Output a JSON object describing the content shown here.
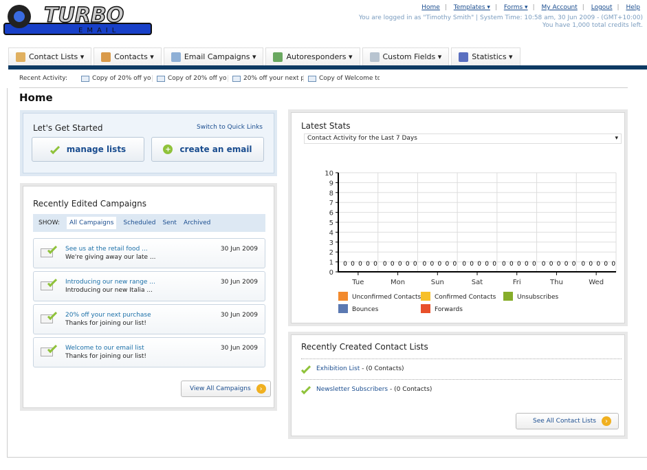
{
  "logo": {
    "text": "TURBO",
    "sub": "EMAIL"
  },
  "top_links": [
    "Home",
    "Templates ▾",
    "Forms ▾",
    "My Account",
    "Logout",
    "Help"
  ],
  "info": {
    "line1": "You are logged in as \"Timothy Smith\" | System Time: 10:58 am, 30 Jun 2009 - (GMT+10:00)",
    "line2": "You have 1,000 total credits left."
  },
  "tabs": [
    {
      "label": "Contact Lists ▾",
      "icon": "contact-lists-icon",
      "color": "#e0b060"
    },
    {
      "label": "Contacts ▾",
      "icon": "contacts-icon",
      "color": "#d99a4a"
    },
    {
      "label": "Email Campaigns ▾",
      "icon": "envelope-icon",
      "color": "#8fb0d6"
    },
    {
      "label": "Autoresponders ▾",
      "icon": "autoresponder-icon",
      "color": "#6aa860"
    },
    {
      "label": "Custom Fields ▾",
      "icon": "custom-fields-icon",
      "color": "#b8c4d0"
    },
    {
      "label": "Statistics ▾",
      "icon": "statistics-icon",
      "color": "#5a6fc0"
    }
  ],
  "recent": {
    "label": "Recent Activity:",
    "items": [
      "Copy of 20% off yo",
      "Copy of 20% off yo",
      "20% off your next p",
      "Copy of Welcome to"
    ]
  },
  "page_title": "Home",
  "get_started": {
    "title": "Let's Get Started",
    "switch": "Switch to Quick Links",
    "manage": "manage lists",
    "create": "create an email"
  },
  "campaigns": {
    "title": "Recently Edited Campaigns",
    "show": "SHOW:",
    "filters": [
      "All Campaigns",
      "Scheduled",
      "Sent",
      "Archived"
    ],
    "items": [
      {
        "title": "See us at the retail food ...",
        "desc": "We're giving away our late ...",
        "date": "30 Jun 2009"
      },
      {
        "title": "Introducing our new range ...",
        "desc": "Introducing our new Italia ...",
        "date": "30 Jun 2009"
      },
      {
        "title": "20% off your next purchase",
        "desc": "Thanks for joining our list!",
        "date": "30 Jun 2009"
      },
      {
        "title": "Welcome to our email list",
        "desc": "Thanks for joining our list!",
        "date": "30 Jun 2009"
      }
    ],
    "view_all": "View All Campaigns"
  },
  "stats": {
    "title": "Latest Stats",
    "select": "Contact Activity for the Last 7 Days"
  },
  "chart_data": {
    "type": "bar",
    "categories": [
      "Tue",
      "Mon",
      "Sun",
      "Sat",
      "Fri",
      "Thu",
      "Wed"
    ],
    "ylim": [
      0,
      10
    ],
    "yticks": [
      0,
      1,
      2,
      3,
      4,
      5,
      6,
      7,
      8,
      9,
      10
    ],
    "grid": true,
    "legend": "bottom",
    "series": [
      {
        "name": "Unconfirmed Contacts",
        "color": "#f28a2e",
        "values": [
          0,
          0,
          0,
          0,
          0,
          0,
          0
        ]
      },
      {
        "name": "Confirmed Contacts",
        "color": "#f7c02a",
        "values": [
          0,
          0,
          0,
          0,
          0,
          0,
          0
        ]
      },
      {
        "name": "Unsubscribes",
        "color": "#86ad2a",
        "values": [
          0,
          0,
          0,
          0,
          0,
          0,
          0
        ]
      },
      {
        "name": "Bounces",
        "color": "#5b79b2",
        "values": [
          0,
          0,
          0,
          0,
          0,
          0,
          0
        ]
      },
      {
        "name": "Forwards",
        "color": "#e8502a",
        "values": [
          0,
          0,
          0,
          0,
          0,
          0,
          0
        ]
      }
    ]
  },
  "contact_lists": {
    "title": "Recently Created Contact Lists",
    "items": [
      {
        "name": "Exhibition List",
        "count": " - (0 Contacts)"
      },
      {
        "name": "Newsletter Subscribers",
        "count": " - (0 Contacts)"
      }
    ],
    "see_all": "See All Contact Lists"
  }
}
